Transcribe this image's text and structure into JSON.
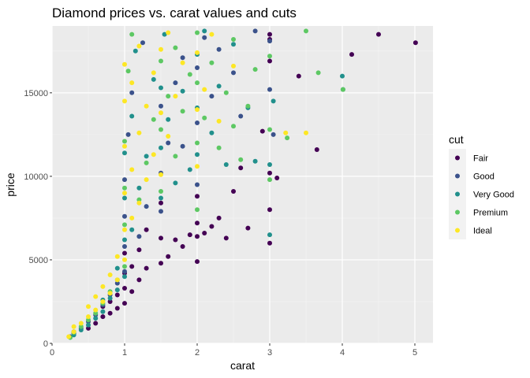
{
  "chart_data": {
    "type": "scatter",
    "title": "Diamond prices vs. carat values and cuts",
    "xlabel": "carat",
    "ylabel": "price",
    "xlim": [
      0,
      5.25
    ],
    "ylim": [
      0,
      19000
    ],
    "x_ticks": [
      0,
      1,
      2,
      3,
      4,
      5
    ],
    "y_ticks": [
      0,
      5000,
      10000,
      15000
    ],
    "grid": true,
    "legend": {
      "title": "cut",
      "placement": "right",
      "entries": [
        {
          "name": "Fair",
          "color": "#440154"
        },
        {
          "name": "Good",
          "color": "#3b528b"
        },
        {
          "name": "Very Good",
          "color": "#21908c"
        },
        {
          "name": "Premium",
          "color": "#5dc863"
        },
        {
          "name": "Ideal",
          "color": "#fde725"
        }
      ]
    },
    "series": [
      {
        "name": "Fair",
        "color": "#440154",
        "points": [
          [
            0.3,
            600
          ],
          [
            0.5,
            900
          ],
          [
            0.6,
            1200
          ],
          [
            0.7,
            1600
          ],
          [
            0.7,
            2200
          ],
          [
            0.8,
            1800
          ],
          [
            0.8,
            2500
          ],
          [
            0.9,
            2100
          ],
          [
            0.9,
            2900
          ],
          [
            1.0,
            2400
          ],
          [
            1.0,
            3300
          ],
          [
            1.0,
            4200
          ],
          [
            1.0,
            5400
          ],
          [
            1.1,
            3100
          ],
          [
            1.1,
            4600
          ],
          [
            1.2,
            3800
          ],
          [
            1.2,
            5600
          ],
          [
            1.3,
            4500
          ],
          [
            1.3,
            6800
          ],
          [
            1.5,
            4800
          ],
          [
            1.5,
            6300
          ],
          [
            1.5,
            8400
          ],
          [
            1.6,
            5200
          ],
          [
            1.7,
            6200
          ],
          [
            1.8,
            5800
          ],
          [
            1.9,
            6500
          ],
          [
            2.0,
            4900
          ],
          [
            2.0,
            6400
          ],
          [
            2.0,
            7200
          ],
          [
            2.0,
            8800
          ],
          [
            2.1,
            6600
          ],
          [
            2.2,
            7000
          ],
          [
            2.3,
            7500
          ],
          [
            2.4,
            6300
          ],
          [
            2.5,
            9100
          ],
          [
            2.6,
            10500
          ],
          [
            2.7,
            6900
          ],
          [
            2.9,
            12700
          ],
          [
            3.0,
            6000
          ],
          [
            3.0,
            8000
          ],
          [
            3.0,
            10200
          ],
          [
            3.0,
            16900
          ],
          [
            3.0,
            18200
          ],
          [
            3.0,
            18500
          ],
          [
            3.1,
            9900
          ],
          [
            3.4,
            16000
          ],
          [
            3.65,
            11600
          ],
          [
            4.13,
            17300
          ],
          [
            4.5,
            18500
          ],
          [
            5.01,
            18000
          ]
        ]
      },
      {
        "name": "Good",
        "color": "#3b528b",
        "points": [
          [
            0.25,
            400
          ],
          [
            0.3,
            700
          ],
          [
            0.4,
            900
          ],
          [
            0.5,
            1300
          ],
          [
            0.6,
            1700
          ],
          [
            0.7,
            2300
          ],
          [
            0.8,
            2900
          ],
          [
            0.9,
            3600
          ],
          [
            1.0,
            4300
          ],
          [
            1.0,
            5800
          ],
          [
            1.0,
            7600
          ],
          [
            1.0,
            9800
          ],
          [
            1.05,
            12500
          ],
          [
            1.1,
            15000
          ],
          [
            1.2,
            6400
          ],
          [
            1.25,
            18000
          ],
          [
            1.3,
            8200
          ],
          [
            1.5,
            7900
          ],
          [
            1.5,
            10200
          ],
          [
            1.5,
            14200
          ],
          [
            1.6,
            12000
          ],
          [
            1.7,
            15600
          ],
          [
            1.8,
            11800
          ],
          [
            1.8,
            17100
          ],
          [
            2.0,
            9500
          ],
          [
            2.0,
            13200
          ],
          [
            2.0,
            16500
          ],
          [
            2.1,
            18300
          ],
          [
            2.2,
            14800
          ],
          [
            2.3,
            17600
          ],
          [
            2.5,
            16200
          ],
          [
            2.6,
            13600
          ],
          [
            2.8,
            18700
          ],
          [
            3.0,
            15200
          ],
          [
            3.0,
            18100
          ],
          [
            3.05,
            12500
          ]
        ]
      },
      {
        "name": "Very Good",
        "color": "#21908c",
        "points": [
          [
            0.3,
            500
          ],
          [
            0.4,
            800
          ],
          [
            0.5,
            1100
          ],
          [
            0.6,
            1500
          ],
          [
            0.7,
            1900
          ],
          [
            0.7,
            2600
          ],
          [
            0.8,
            2700
          ],
          [
            0.9,
            3200
          ],
          [
            0.9,
            4500
          ],
          [
            1.0,
            4000
          ],
          [
            1.0,
            6200
          ],
          [
            1.0,
            8700
          ],
          [
            1.0,
            11400
          ],
          [
            1.1,
            6800
          ],
          [
            1.1,
            13600
          ],
          [
            1.15,
            17500
          ],
          [
            1.2,
            9300
          ],
          [
            1.3,
            11200
          ],
          [
            1.4,
            15800
          ],
          [
            1.5,
            8700
          ],
          [
            1.5,
            11700
          ],
          [
            1.5,
            15300
          ],
          [
            1.55,
            18500
          ],
          [
            1.6,
            13400
          ],
          [
            1.7,
            9600
          ],
          [
            1.8,
            15100
          ],
          [
            1.9,
            10400
          ],
          [
            2.0,
            11300
          ],
          [
            2.0,
            14100
          ],
          [
            2.0,
            17300
          ],
          [
            2.1,
            18700
          ],
          [
            2.2,
            12600
          ],
          [
            2.3,
            15400
          ],
          [
            2.4,
            10700
          ],
          [
            2.5,
            17900
          ],
          [
            2.7,
            14100
          ],
          [
            2.8,
            10900
          ],
          [
            3.0,
            6500
          ],
          [
            3.0,
            10700
          ],
          [
            3.05,
            14500
          ],
          [
            4.0,
            16000
          ],
          [
            4.01,
            15200
          ]
        ]
      },
      {
        "name": "Premium",
        "color": "#5dc863",
        "points": [
          [
            0.25,
            350
          ],
          [
            0.3,
            650
          ],
          [
            0.4,
            1000
          ],
          [
            0.5,
            1400
          ],
          [
            0.6,
            1800
          ],
          [
            0.7,
            2400
          ],
          [
            0.8,
            3100
          ],
          [
            0.9,
            3800
          ],
          [
            1.0,
            4600
          ],
          [
            1.0,
            7100
          ],
          [
            1.0,
            9300
          ],
          [
            1.0,
            12100
          ],
          [
            1.05,
            16300
          ],
          [
            1.1,
            18500
          ],
          [
            1.2,
            8600
          ],
          [
            1.3,
            10800
          ],
          [
            1.4,
            13400
          ],
          [
            1.5,
            9100
          ],
          [
            1.5,
            12800
          ],
          [
            1.5,
            16900
          ],
          [
            1.6,
            14800
          ],
          [
            1.7,
            11200
          ],
          [
            1.7,
            17700
          ],
          [
            1.8,
            13900
          ],
          [
            1.9,
            16100
          ],
          [
            2.0,
            8000
          ],
          [
            2.0,
            12000
          ],
          [
            2.0,
            15600
          ],
          [
            2.0,
            18600
          ],
          [
            2.1,
            13500
          ],
          [
            2.2,
            16800
          ],
          [
            2.3,
            11700
          ],
          [
            2.4,
            15000
          ],
          [
            2.5,
            13000
          ],
          [
            2.5,
            18200
          ],
          [
            2.6,
            11000
          ],
          [
            2.7,
            14200
          ],
          [
            2.8,
            16400
          ],
          [
            3.0,
            9800
          ],
          [
            3.0,
            12800
          ],
          [
            3.0,
            17200
          ],
          [
            3.24,
            12300
          ],
          [
            3.5,
            18700
          ],
          [
            3.67,
            16200
          ],
          [
            4.01,
            15200
          ]
        ]
      },
      {
        "name": "Ideal",
        "color": "#fde725",
        "points": [
          [
            0.23,
            400
          ],
          [
            0.3,
            700
          ],
          [
            0.3,
            1000
          ],
          [
            0.4,
            1200
          ],
          [
            0.5,
            1600
          ],
          [
            0.5,
            2200
          ],
          [
            0.6,
            2000
          ],
          [
            0.6,
            2800
          ],
          [
            0.7,
            2500
          ],
          [
            0.7,
            3400
          ],
          [
            0.8,
            3000
          ],
          [
            0.8,
            4100
          ],
          [
            0.9,
            3800
          ],
          [
            0.9,
            5200
          ],
          [
            1.0,
            5000
          ],
          [
            1.0,
            6800
          ],
          [
            1.0,
            9000
          ],
          [
            1.0,
            11800
          ],
          [
            1.0,
            14500
          ],
          [
            1.0,
            16700
          ],
          [
            1.1,
            7500
          ],
          [
            1.1,
            10400
          ],
          [
            1.1,
            15600
          ],
          [
            1.2,
            8400
          ],
          [
            1.2,
            12600
          ],
          [
            1.2,
            17800
          ],
          [
            1.3,
            9800
          ],
          [
            1.3,
            14200
          ],
          [
            1.4,
            11300
          ],
          [
            1.4,
            16200
          ],
          [
            1.5,
            10100
          ],
          [
            1.5,
            13800
          ],
          [
            1.5,
            17600
          ],
          [
            1.6,
            12400
          ],
          [
            1.6,
            18600
          ],
          [
            1.7,
            14800
          ],
          [
            1.8,
            16800
          ],
          [
            2.0,
            10600
          ],
          [
            2.0,
            14000
          ],
          [
            2.0,
            17400
          ],
          [
            2.1,
            15200
          ],
          [
            2.2,
            18500
          ],
          [
            2.3,
            13300
          ],
          [
            2.5,
            16600
          ],
          [
            3.22,
            12600
          ],
          [
            3.5,
            12600
          ]
        ]
      }
    ]
  }
}
